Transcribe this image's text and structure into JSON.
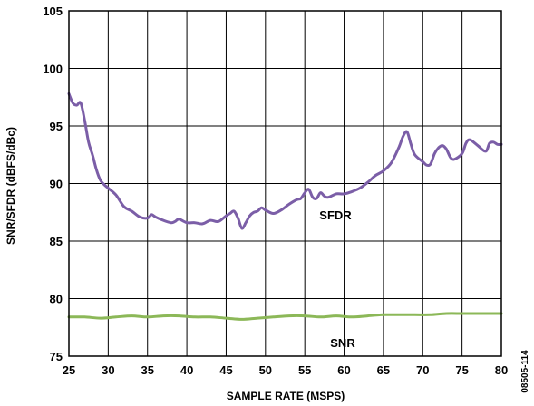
{
  "chart_data": {
    "type": "line",
    "xlabel": "SAMPLE RATE (MSPS)",
    "ylabel": "SNR/SFDR (dBFS/dBc)",
    "xlim": [
      25,
      80
    ],
    "ylim": [
      75,
      105
    ],
    "x_ticks": [
      "25",
      "30",
      "35",
      "40",
      "45",
      "50",
      "55",
      "60",
      "65",
      "70",
      "75",
      "80"
    ],
    "y_ticks": [
      "75",
      "80",
      "85",
      "90",
      "95",
      "100",
      "105"
    ],
    "grid": true,
    "legend": "none",
    "figure_id": "08505-114",
    "series": [
      {
        "name": "SFDR",
        "color": "#7b5ea7",
        "x": [
          25,
          25.5,
          26,
          26.5,
          27,
          27.5,
          28,
          28.5,
          29,
          29.5,
          30,
          31,
          32,
          33,
          34,
          35,
          35.5,
          36,
          37,
          38,
          38.5,
          39,
          40,
          41,
          42,
          43,
          44,
          45,
          45.5,
          46,
          46.5,
          47,
          47.5,
          48,
          48.5,
          49,
          49.5,
          50,
          51,
          52,
          53,
          54,
          54.5,
          55,
          55.5,
          56,
          56.5,
          57,
          57.5,
          58,
          59,
          60,
          61,
          62,
          63,
          64,
          65,
          66,
          67,
          67.5,
          68,
          68.5,
          69,
          70,
          70.5,
          71,
          71.5,
          72,
          72.5,
          73,
          73.5,
          74,
          75,
          75.5,
          76,
          77,
          78,
          78.5,
          79,
          79.5,
          80
        ],
        "y": [
          97.8,
          97,
          96.8,
          97,
          95.5,
          93.6,
          92.5,
          91.2,
          90.3,
          89.9,
          89.6,
          89.0,
          88.0,
          87.6,
          87.1,
          87.0,
          87.3,
          87.1,
          86.8,
          86.6,
          86.7,
          86.9,
          86.6,
          86.6,
          86.5,
          86.8,
          86.7,
          87.2,
          87.4,
          87.6,
          87.0,
          86.1,
          86.6,
          87.2,
          87.5,
          87.6,
          87.9,
          87.7,
          87.4,
          87.7,
          88.2,
          88.6,
          88.7,
          89.2,
          89.5,
          88.8,
          88.7,
          89.2,
          88.9,
          88.8,
          89.1,
          89.1,
          89.3,
          89.6,
          90.1,
          90.7,
          91.1,
          91.8,
          93.2,
          94.1,
          94.5,
          93.4,
          92.5,
          91.9,
          91.6,
          91.7,
          92.6,
          93.1,
          93.3,
          93.0,
          92.3,
          92.1,
          92.6,
          93.5,
          93.8,
          93.3,
          92.8,
          93.5,
          93.6,
          93.4,
          93.4
        ],
        "label": "SFDR"
      },
      {
        "name": "SNR",
        "color": "#8cb858",
        "x": [
          25,
          27,
          29,
          31,
          33,
          35,
          37,
          39,
          41,
          43,
          45,
          47,
          49,
          51,
          53,
          55,
          57,
          59,
          61,
          63,
          65,
          67,
          69,
          71,
          73,
          75,
          77,
          79,
          80
        ],
        "y": [
          78.4,
          78.4,
          78.3,
          78.4,
          78.5,
          78.4,
          78.5,
          78.5,
          78.4,
          78.4,
          78.3,
          78.2,
          78.3,
          78.4,
          78.5,
          78.5,
          78.4,
          78.5,
          78.4,
          78.5,
          78.6,
          78.6,
          78.6,
          78.6,
          78.7,
          78.7,
          78.7,
          78.7,
          78.7
        ],
        "label": "SNR"
      }
    ]
  }
}
